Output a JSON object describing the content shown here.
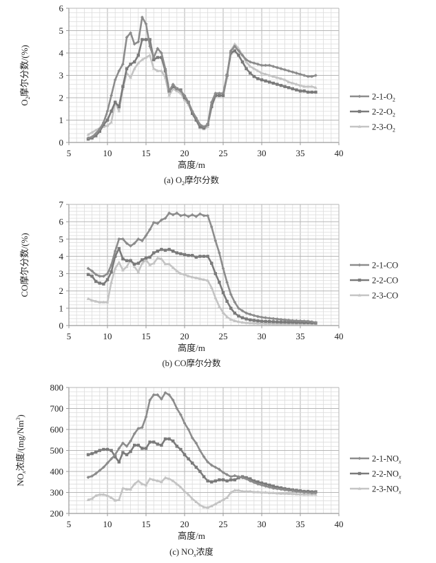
{
  "chart_data": [
    {
      "type": "line",
      "title": "(a) O2摩尔分数",
      "caption_prefix": "(a) O",
      "caption_sub": "2",
      "caption_suffix": "摩尔分数",
      "xlabel": "高度/m",
      "ylabel_prefix": "O",
      "ylabel_sub": "2",
      "ylabel_suffix": "摩尔分数/(%)",
      "xlim": [
        5,
        40
      ],
      "ylim": [
        0,
        6
      ],
      "xticks": [
        5,
        10,
        15,
        20,
        25,
        30,
        35,
        40
      ],
      "yticks": [
        0,
        1,
        2,
        3,
        4,
        5,
        6
      ],
      "grid": true,
      "legend_position": "right",
      "x": [
        7.5,
        8,
        8.5,
        9,
        9.5,
        10,
        10.5,
        11,
        11.5,
        12,
        12.5,
        13,
        13.5,
        14,
        14.5,
        15,
        15.5,
        16,
        16.5,
        17,
        17.5,
        18,
        18.5,
        19,
        19.5,
        20,
        20.5,
        21,
        21.5,
        22,
        22.5,
        23,
        23.5,
        24,
        24.5,
        25,
        25.5,
        26,
        26.5,
        27,
        27.5,
        28,
        28.5,
        29,
        29.5,
        30,
        30.5,
        31,
        31.5,
        32,
        32.5,
        33,
        33.5,
        34,
        34.5,
        35,
        35.5,
        36,
        36.5,
        37
      ],
      "series": [
        {
          "name_prefix": "2-1-O",
          "name_sub": "2",
          "name": "2-1-O2",
          "color": "#8c8c8c",
          "marker": "diamond",
          "values": [
            0.2,
            0.25,
            0.4,
            0.6,
            0.9,
            1.4,
            2.1,
            2.8,
            3.2,
            3.5,
            4.7,
            4.9,
            4.4,
            4.5,
            5.6,
            5.3,
            4.3,
            3.8,
            4.2,
            4.0,
            3.3,
            2.3,
            2.6,
            2.4,
            2.3,
            2.1,
            1.8,
            1.4,
            1.1,
            0.8,
            0.7,
            0.8,
            1.8,
            2.2,
            2.2,
            2.2,
            3.0,
            4.1,
            4.3,
            4.1,
            3.9,
            3.7,
            3.6,
            3.55,
            3.5,
            3.45,
            3.45,
            3.45,
            3.4,
            3.35,
            3.3,
            3.25,
            3.2,
            3.15,
            3.1,
            3.05,
            3.0,
            2.95,
            2.95,
            3.0
          ]
        },
        {
          "name_prefix": "2-2-O",
          "name_sub": "2",
          "name": "2-2-O2",
          "color": "#7a7a7a",
          "marker": "square",
          "values": [
            0.15,
            0.2,
            0.3,
            0.5,
            0.8,
            1.0,
            1.4,
            1.8,
            1.6,
            2.5,
            3.3,
            3.5,
            3.6,
            3.9,
            4.6,
            4.6,
            4.6,
            3.7,
            3.8,
            3.8,
            3.2,
            2.3,
            2.5,
            2.4,
            2.35,
            2.0,
            1.8,
            1.3,
            1.0,
            0.7,
            0.65,
            0.8,
            1.6,
            2.1,
            2.1,
            2.1,
            3.0,
            4.0,
            4.1,
            3.9,
            3.6,
            3.3,
            3.1,
            2.95,
            2.85,
            2.8,
            2.75,
            2.7,
            2.65,
            2.6,
            2.55,
            2.5,
            2.45,
            2.4,
            2.35,
            2.3,
            2.3,
            2.25,
            2.25,
            2.25
          ]
        },
        {
          "name_prefix": "2-3-O",
          "name_sub": "2",
          "name": "2-3-O2",
          "color": "#c4c4c4",
          "marker": "triangle",
          "values": [
            0.35,
            0.45,
            0.55,
            0.65,
            0.7,
            0.75,
            0.9,
            1.8,
            1.4,
            2.4,
            3.1,
            2.9,
            3.3,
            3.55,
            3.7,
            3.8,
            3.9,
            3.3,
            3.2,
            3.2,
            2.9,
            2.1,
            2.4,
            2.3,
            2.2,
            1.9,
            1.7,
            1.3,
            1.0,
            0.65,
            0.6,
            0.7,
            1.6,
            2.1,
            2.1,
            2.1,
            2.9,
            4.1,
            4.4,
            4.2,
            3.9,
            3.6,
            3.4,
            3.3,
            3.2,
            3.1,
            3.05,
            3.0,
            2.95,
            2.9,
            2.85,
            2.8,
            2.7,
            2.65,
            2.6,
            2.55,
            2.5,
            2.5,
            2.5,
            2.45
          ]
        }
      ]
    },
    {
      "type": "line",
      "title": "(b) CO摩尔分数",
      "caption_prefix": "(b) CO摩尔分数",
      "caption_sub": "",
      "caption_suffix": "",
      "xlabel": "高度/m",
      "ylabel_prefix": "CO摩尔分数/(%)",
      "ylabel_sub": "",
      "ylabel_suffix": "",
      "xlim": [
        5,
        40
      ],
      "ylim": [
        0,
        7
      ],
      "xticks": [
        5,
        10,
        15,
        20,
        25,
        30,
        35,
        40
      ],
      "yticks": [
        0,
        1,
        2,
        3,
        4,
        5,
        6,
        7
      ],
      "grid": true,
      "legend_position": "right",
      "x": [
        7.5,
        8,
        8.5,
        9,
        9.5,
        10,
        10.5,
        11,
        11.5,
        12,
        12.5,
        13,
        13.5,
        14,
        14.5,
        15,
        15.5,
        16,
        16.5,
        17,
        17.5,
        18,
        18.5,
        19,
        19.5,
        20,
        20.5,
        21,
        21.5,
        22,
        22.5,
        23,
        23.5,
        24,
        24.5,
        25,
        25.5,
        26,
        26.5,
        27,
        27.5,
        28,
        28.5,
        29,
        29.5,
        30,
        30.5,
        31,
        31.5,
        32,
        32.5,
        33,
        33.5,
        34,
        34.5,
        35,
        35.5,
        36,
        36.5,
        37
      ],
      "series": [
        {
          "name_prefix": "2-1-CO",
          "name_sub": "",
          "name": "2-1-CO",
          "color": "#8c8c8c",
          "marker": "diamond",
          "values": [
            3.3,
            3.15,
            2.95,
            2.85,
            2.85,
            3.0,
            3.5,
            4.3,
            5.0,
            5.0,
            4.75,
            4.6,
            4.75,
            5.0,
            4.9,
            5.2,
            5.55,
            5.95,
            5.9,
            6.1,
            6.2,
            6.5,
            6.4,
            6.5,
            6.35,
            6.4,
            6.3,
            6.4,
            6.3,
            6.45,
            6.35,
            6.35,
            5.7,
            4.9,
            4.2,
            3.3,
            2.5,
            1.8,
            1.35,
            1.0,
            0.85,
            0.72,
            0.65,
            0.58,
            0.52,
            0.48,
            0.45,
            0.42,
            0.4,
            0.38,
            0.35,
            0.33,
            0.31,
            0.29,
            0.28,
            0.27,
            0.26,
            0.25,
            0.22,
            0.18
          ]
        },
        {
          "name_prefix": "2-2-CO",
          "name_sub": "",
          "name": "2-2-CO",
          "color": "#7a7a7a",
          "marker": "square",
          "values": [
            2.95,
            2.85,
            2.55,
            2.45,
            2.4,
            2.65,
            3.1,
            4.0,
            4.45,
            3.85,
            3.75,
            3.75,
            3.55,
            3.6,
            3.8,
            3.9,
            3.95,
            4.2,
            4.3,
            4.4,
            4.35,
            4.4,
            4.3,
            4.2,
            4.15,
            4.1,
            4.05,
            4.05,
            3.95,
            4.0,
            4.0,
            4.0,
            3.6,
            3.0,
            2.5,
            1.9,
            1.4,
            1.0,
            0.72,
            0.55,
            0.45,
            0.38,
            0.33,
            0.3,
            0.27,
            0.25,
            0.24,
            0.23,
            0.22,
            0.21,
            0.2,
            0.2,
            0.19,
            0.19,
            0.18,
            0.18,
            0.17,
            0.17,
            0.16,
            0.15
          ]
        },
        {
          "name_prefix": "2-3-CO",
          "name_sub": "",
          "name": "2-3-CO",
          "color": "#c4c4c4",
          "marker": "triangle",
          "values": [
            1.55,
            1.45,
            1.4,
            1.35,
            1.35,
            1.35,
            2.5,
            3.3,
            3.65,
            3.2,
            3.4,
            3.8,
            3.4,
            3.1,
            3.6,
            3.8,
            3.5,
            3.6,
            3.9,
            3.85,
            3.55,
            3.55,
            3.35,
            3.15,
            3.0,
            2.95,
            2.85,
            2.8,
            2.75,
            2.7,
            2.65,
            2.6,
            2.2,
            1.6,
            1.1,
            0.75,
            0.5,
            0.35,
            0.27,
            0.22,
            0.18,
            0.16,
            0.14,
            0.13,
            0.12,
            0.12,
            0.11,
            0.11,
            0.1,
            0.1,
            0.1,
            0.1,
            0.1,
            0.1,
            0.1,
            0.1,
            0.1,
            0.1,
            0.1,
            0.1
          ]
        }
      ]
    },
    {
      "type": "line",
      "title": "(c) NOx浓度",
      "caption_prefix": "(c) NO",
      "caption_sub": "x",
      "caption_suffix": "浓度",
      "xlabel": "高度/m",
      "ylabel_prefix": "NO",
      "ylabel_sub": "x",
      "ylabel_suffix": "浓度/(mg/Nm",
      "ylabel_sup": "3",
      "ylabel_end": ")",
      "xlim": [
        5,
        40
      ],
      "ylim": [
        200,
        800
      ],
      "xticks": [
        5,
        10,
        15,
        20,
        25,
        30,
        35,
        40
      ],
      "yticks": [
        200,
        300,
        400,
        500,
        600,
        700,
        800
      ],
      "grid": true,
      "legend_position": "right",
      "x": [
        7.5,
        8,
        8.5,
        9,
        9.5,
        10,
        10.5,
        11,
        11.5,
        12,
        12.5,
        13,
        13.5,
        14,
        14.5,
        15,
        15.5,
        16,
        16.5,
        17,
        17.5,
        18,
        18.5,
        19,
        19.5,
        20,
        20.5,
        21,
        21.5,
        22,
        22.5,
        23,
        23.5,
        24,
        24.5,
        25,
        25.5,
        26,
        26.5,
        27,
        27.5,
        28,
        28.5,
        29,
        29.5,
        30,
        30.5,
        31,
        31.5,
        32,
        32.5,
        33,
        33.5,
        34,
        34.5,
        35,
        35.5,
        36,
        36.5,
        37
      ],
      "series": [
        {
          "name_prefix": "2-1-NO",
          "name_sub": "x",
          "name": "2-1-NOx",
          "color": "#8c8c8c",
          "marker": "diamond",
          "values": [
            372,
            378,
            390,
            405,
            420,
            440,
            460,
            480,
            510,
            535,
            520,
            545,
            580,
            605,
            610,
            660,
            740,
            765,
            765,
            745,
            775,
            765,
            740,
            700,
            670,
            630,
            600,
            560,
            535,
            500,
            470,
            445,
            430,
            420,
            410,
            395,
            385,
            375,
            380,
            375,
            370,
            365,
            355,
            348,
            340,
            335,
            330,
            325,
            320,
            318,
            315,
            312,
            310,
            308,
            305,
            303,
            300,
            300,
            298,
            298
          ]
        },
        {
          "name_prefix": "2-2-NO",
          "name_sub": "x",
          "name": "2-2-NOx",
          "color": "#7a7a7a",
          "marker": "square",
          "values": [
            480,
            485,
            492,
            500,
            505,
            505,
            500,
            470,
            445,
            490,
            480,
            495,
            525,
            525,
            510,
            510,
            540,
            540,
            530,
            525,
            555,
            555,
            545,
            520,
            505,
            480,
            460,
            440,
            420,
            400,
            375,
            355,
            350,
            355,
            360,
            360,
            355,
            360,
            360,
            370,
            375,
            370,
            365,
            355,
            350,
            345,
            340,
            335,
            330,
            325,
            322,
            318,
            315,
            312,
            310,
            308,
            305,
            305,
            303,
            303
          ]
        },
        {
          "name_prefix": "2-3-NO",
          "name_sub": "x",
          "name": "2-3-NOx",
          "color": "#c4c4c4",
          "marker": "triangle",
          "values": [
            265,
            270,
            285,
            290,
            290,
            285,
            275,
            262,
            265,
            320,
            315,
            315,
            340,
            355,
            340,
            335,
            365,
            360,
            355,
            350,
            370,
            365,
            355,
            340,
            325,
            305,
            290,
            270,
            255,
            240,
            230,
            228,
            235,
            245,
            255,
            265,
            275,
            300,
            310,
            310,
            305,
            305,
            305,
            302,
            302,
            300,
            300,
            298,
            298,
            296,
            295,
            295,
            294,
            293,
            292,
            291,
            290,
            290,
            290,
            290
          ]
        }
      ]
    }
  ]
}
